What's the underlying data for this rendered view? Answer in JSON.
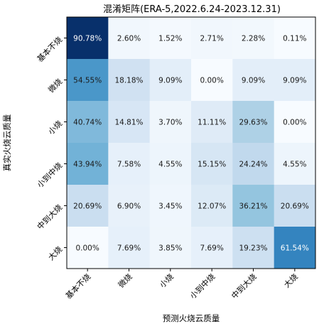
{
  "chart_data": {
    "type": "heatmap",
    "title": "混淆矩阵(ERA-5,2022.6.24-2023.12.31)",
    "xlabel": "预测火烧云质量",
    "ylabel": "真实火烧云质量",
    "x_categories": [
      "基本不烧",
      "微烧",
      "小烧",
      "小到中烧",
      "中到大烧",
      "大烧"
    ],
    "y_categories": [
      "基本不烧",
      "微烧",
      "小烧",
      "小到中烧",
      "中到大烧",
      "大烧"
    ],
    "colormap": "Blues",
    "value_unit": "%",
    "value_range": [
      0,
      100
    ],
    "values": [
      [
        90.78,
        2.6,
        1.52,
        2.71,
        2.28,
        0.11
      ],
      [
        54.55,
        18.18,
        9.09,
        0.0,
        9.09,
        9.09
      ],
      [
        40.74,
        14.81,
        3.7,
        11.11,
        29.63,
        0.0
      ],
      [
        43.94,
        7.58,
        4.55,
        15.15,
        24.24,
        4.55
      ],
      [
        20.69,
        6.9,
        3.45,
        12.07,
        36.21,
        20.69
      ],
      [
        0.0,
        7.69,
        3.85,
        7.69,
        19.23,
        61.54
      ]
    ],
    "cell_labels": [
      [
        "90.78%",
        "2.60%",
        "1.52%",
        "2.71%",
        "2.28%",
        "0.11%"
      ],
      [
        "54.55%",
        "18.18%",
        "9.09%",
        "0.00%",
        "9.09%",
        "9.09%"
      ],
      [
        "40.74%",
        "14.81%",
        "3.70%",
        "11.11%",
        "29.63%",
        "0.00%"
      ],
      [
        "43.94%",
        "7.58%",
        "4.55%",
        "15.15%",
        "24.24%",
        "4.55%"
      ],
      [
        "20.69%",
        "6.90%",
        "3.45%",
        "12.07%",
        "36.21%",
        "20.69%"
      ],
      [
        "0.00%",
        "7.69%",
        "3.85%",
        "7.69%",
        "19.23%",
        "61.54%"
      ]
    ]
  }
}
